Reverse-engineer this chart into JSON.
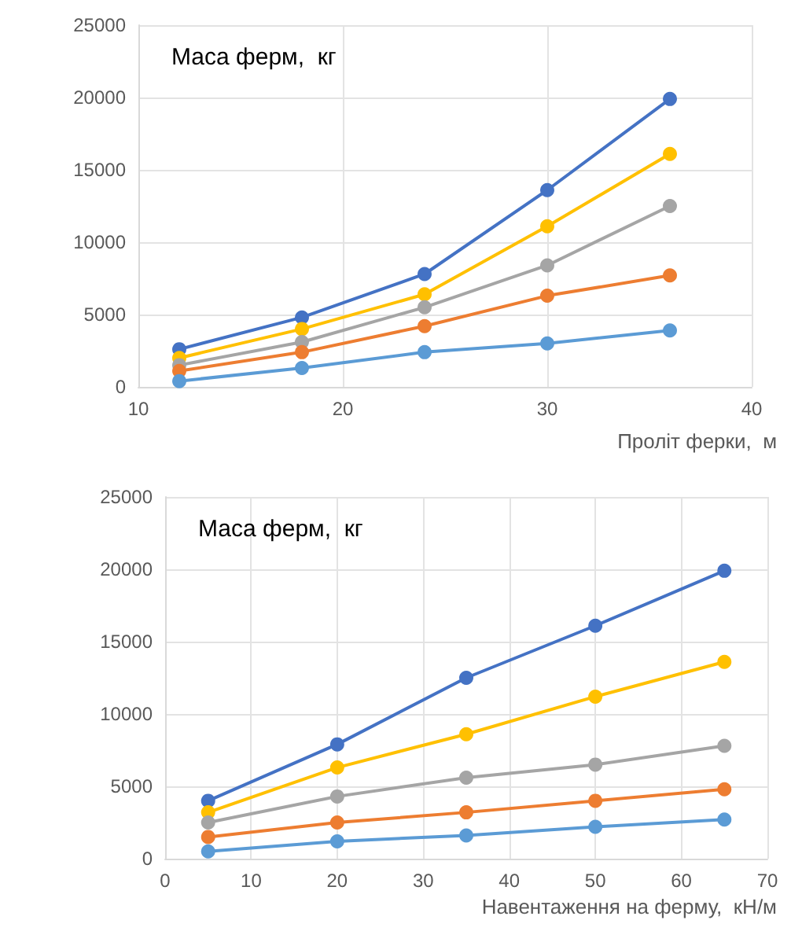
{
  "chart_data": [
    {
      "type": "line",
      "ylabel": "Маса ферм,  кг",
      "xlabel": "Проліт ферки,  м",
      "x": [
        12,
        18,
        24,
        30,
        36
      ],
      "xlim": [
        10,
        40
      ],
      "xticks": [
        10,
        20,
        30,
        40
      ],
      "ylim": [
        0,
        25000
      ],
      "yticks": [
        0,
        5000,
        10000,
        15000,
        20000,
        25000
      ],
      "grid": true,
      "marker": "circle",
      "series": [
        {
          "color": "#4472c4",
          "values": [
            2600,
            4800,
            7800,
            13600,
            19900
          ]
        },
        {
          "color": "#ffc000",
          "values": [
            2000,
            4000,
            6400,
            11100,
            16100
          ]
        },
        {
          "color": "#a5a5a5",
          "values": [
            1500,
            3100,
            5500,
            8400,
            12500
          ]
        },
        {
          "color": "#ed7d31",
          "values": [
            1100,
            2400,
            4200,
            6300,
            7700
          ]
        },
        {
          "color": "#5b9bd5",
          "values": [
            400,
            1300,
            2400,
            3000,
            3900
          ]
        }
      ]
    },
    {
      "type": "line",
      "ylabel": "Маса ферм,  кг",
      "xlabel": "Навентаження на ферму,  кН/м",
      "x": [
        5,
        20,
        35,
        50,
        65
      ],
      "xlim": [
        0,
        70
      ],
      "xticks": [
        0,
        10,
        20,
        30,
        40,
        50,
        60,
        70
      ],
      "ylim": [
        0,
        25000
      ],
      "yticks": [
        0,
        5000,
        10000,
        15000,
        20000,
        25000
      ],
      "grid": true,
      "marker": "circle",
      "series": [
        {
          "color": "#4472c4",
          "values": [
            4000,
            7900,
            12500,
            16100,
            19900
          ]
        },
        {
          "color": "#ffc000",
          "values": [
            3200,
            6300,
            8600,
            11200,
            13600
          ]
        },
        {
          "color": "#a5a5a5",
          "values": [
            2500,
            4300,
            5600,
            6500,
            7800
          ]
        },
        {
          "color": "#ed7d31",
          "values": [
            1500,
            2500,
            3200,
            4000,
            4800
          ]
        },
        {
          "color": "#5b9bd5",
          "values": [
            500,
            1200,
            1600,
            2200,
            2700
          ]
        }
      ]
    }
  ]
}
